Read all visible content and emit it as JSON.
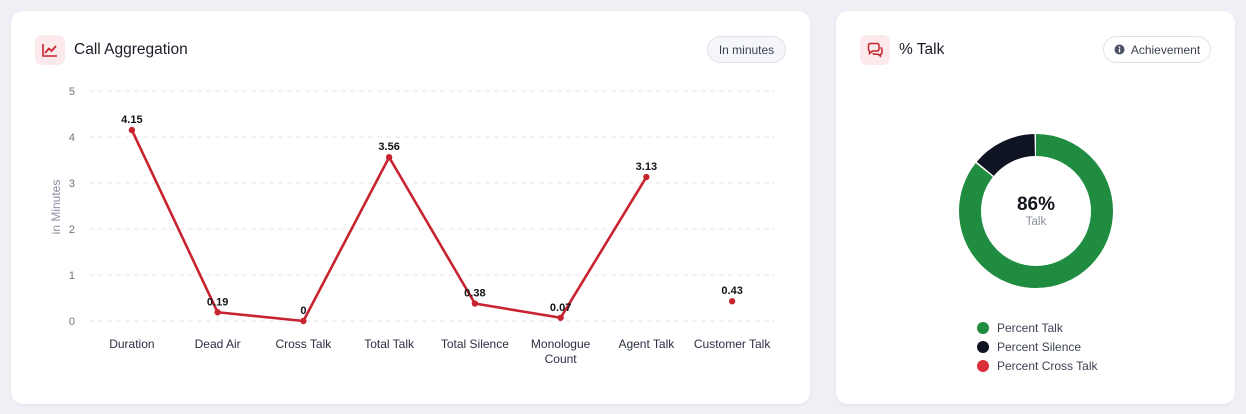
{
  "aggregation": {
    "title": "Call Aggregation",
    "units_button": "In minutes",
    "icon": "line-chart-icon"
  },
  "talk": {
    "title": "% Talk",
    "achievement_button": "Achievement",
    "icon": "chat-bubbles-icon",
    "info_icon": "info-icon",
    "center_value": "86%",
    "center_label": "Talk"
  },
  "chart_data": [
    {
      "type": "line",
      "ylabel": "in Minutes",
      "ylim": [
        0,
        5
      ],
      "yticks": [
        "0",
        "1",
        "2",
        "3",
        "4",
        "5"
      ],
      "categories": [
        "Duration",
        "Dead Air",
        "Cross Talk",
        "Total Talk",
        "Total Silence",
        "Monologue Count",
        "Agent Talk",
        "Customer Talk"
      ],
      "category_lines": [
        [
          "Duration"
        ],
        [
          "Dead Air"
        ],
        [
          "Cross Talk"
        ],
        [
          "Total Talk"
        ],
        [
          "Total Silence"
        ],
        [
          "Monologue",
          "Count"
        ],
        [
          "Agent Talk"
        ],
        [
          "Customer Talk"
        ]
      ],
      "values": [
        4.15,
        0.19,
        0,
        3.56,
        0.38,
        0.07,
        3.13,
        0.43
      ],
      "value_labels": [
        "4.15",
        "0.19",
        "0",
        "3.56",
        "0.38",
        "0.07",
        "3.13",
        "0.43"
      ],
      "line_gap_before_index": 7,
      "grid": true,
      "colors": {
        "line": "#c8242f",
        "grid": "#e4e6ec"
      }
    },
    {
      "type": "pie",
      "donut": true,
      "labels": [
        "Percent Talk",
        "Percent Silence",
        "Percent Cross Talk"
      ],
      "values": [
        86,
        14,
        0
      ],
      "colors": [
        "#1f8c3f",
        "#0f1422",
        "#dc2f3c"
      ],
      "legend": "bottom"
    }
  ]
}
